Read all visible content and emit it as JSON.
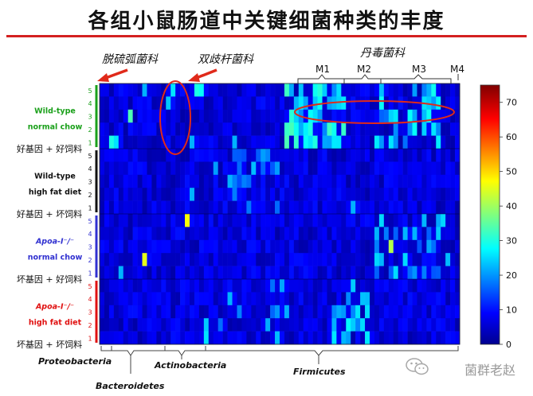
{
  "page": {
    "title": "各组小鼠肠道中关键细菌种类的丰度",
    "watermark": "菌群老赵"
  },
  "annotations": {
    "desulfo": "脱硫弧菌科",
    "bifido": "双歧杆菌科",
    "erysipelo": "丹毒菌科",
    "modules": [
      "M1",
      "M2",
      "M3",
      "M4"
    ]
  },
  "groups": [
    {
      "line1": "Wild-type",
      "line2": "normal chow",
      "caption": "好基因 + 好饲料",
      "color": "#1aa01a",
      "rows": [
        "5",
        "4",
        "3",
        "2",
        "1"
      ]
    },
    {
      "line1": "Wild-type",
      "line2": "high fat diet",
      "caption": "好基因 + 坏饲料",
      "color": "#111111",
      "rows": [
        "5",
        "4",
        "3",
        "2",
        "1"
      ]
    },
    {
      "line1": "Apoa-Ⅰ⁻/⁻",
      "line2": "normal chow",
      "caption": "坏基因 + 好饲料",
      "color": "#3030d0",
      "rows": [
        "5",
        "4",
        "3",
        "2",
        "1"
      ]
    },
    {
      "line1": "Apoa-Ⅰ⁻/⁻",
      "line2": "high fat diet",
      "caption": "坏基因 + 坏饲料",
      "color": "#e01010",
      "rows": [
        "5",
        "4",
        "3",
        "2",
        "1"
      ]
    }
  ],
  "chart_data": {
    "type": "heatmap",
    "phyla": [
      "Proteobacteria",
      "Bacteroidetes",
      "Actinobacteria",
      "Firmicutes"
    ],
    "colorbar": {
      "min": 0,
      "max": 75,
      "ticks": [
        0,
        10,
        20,
        30,
        40,
        50,
        60,
        70
      ]
    },
    "colors": {
      "low": "#00008f",
      "high": "#800000"
    }
  }
}
